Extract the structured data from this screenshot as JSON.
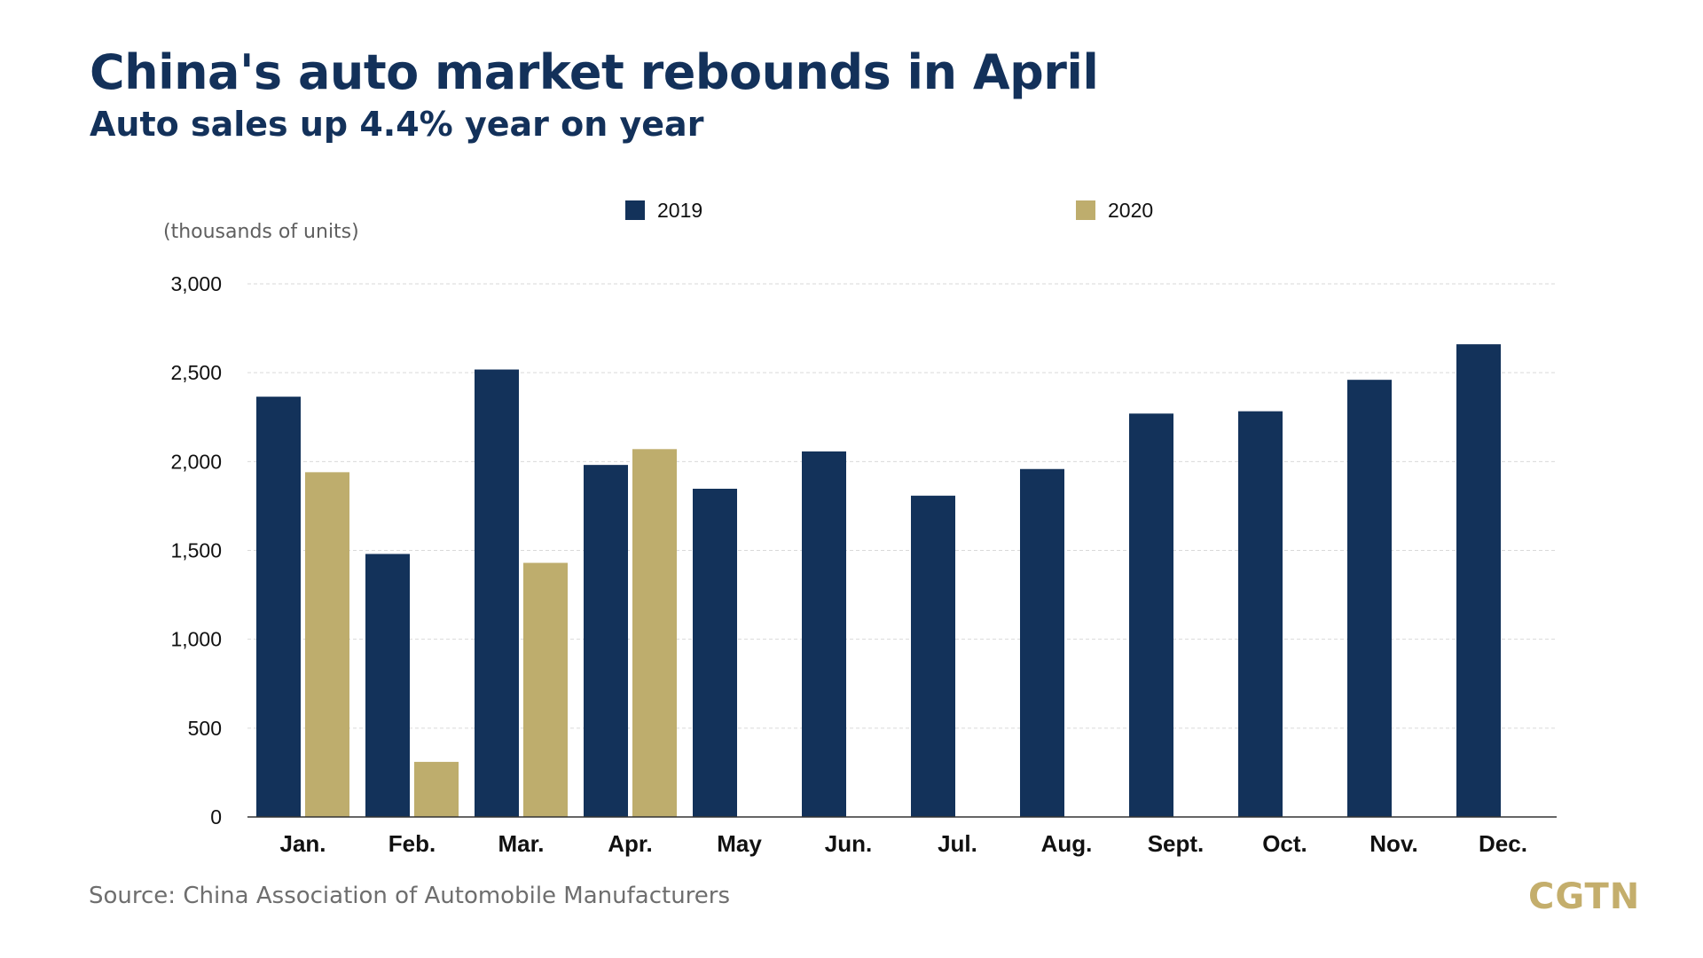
{
  "header": {
    "title": "China's auto market rebounds in April",
    "subtitle": "Auto sales up 4.4% year on year"
  },
  "footer": {
    "source": "Source: China Association of Automobile Manufacturers",
    "logo": "CGTN"
  },
  "colors": {
    "series_2019": "#13325a",
    "series_2020": "#bead6d",
    "title": "#13315a",
    "grid": "#d9d9d9",
    "axis": "#333333",
    "logo": "#c4ae6c"
  },
  "chart_data": {
    "type": "bar",
    "title": "China's auto market rebounds in April",
    "subtitle": "Auto sales up 4.4% year on year",
    "ylabel": "(thousands of units)",
    "xlabel": "",
    "categories": [
      "Jan.",
      "Feb.",
      "Mar.",
      "Apr.",
      "May",
      "Jun.",
      "Jul.",
      "Aug.",
      "Sept.",
      "Oct.",
      "Nov.",
      "Dec."
    ],
    "series": [
      {
        "name": "2019",
        "values": [
          2365,
          1480,
          2518,
          1981,
          1847,
          2057,
          1808,
          1958,
          2270,
          2283,
          2460,
          2660
        ]
      },
      {
        "name": "2020",
        "values": [
          1940,
          310,
          1430,
          2070,
          null,
          null,
          null,
          null,
          null,
          null,
          null,
          null
        ]
      }
    ],
    "ylim": [
      0,
      3000
    ],
    "yticks": [
      0,
      500,
      1000,
      1500,
      2000,
      2500,
      3000
    ],
    "ytick_labels": [
      "0",
      "500",
      "1,000",
      "1,500",
      "2,000",
      "2,500",
      "3,000"
    ],
    "grid": true,
    "legend": "top-center"
  }
}
